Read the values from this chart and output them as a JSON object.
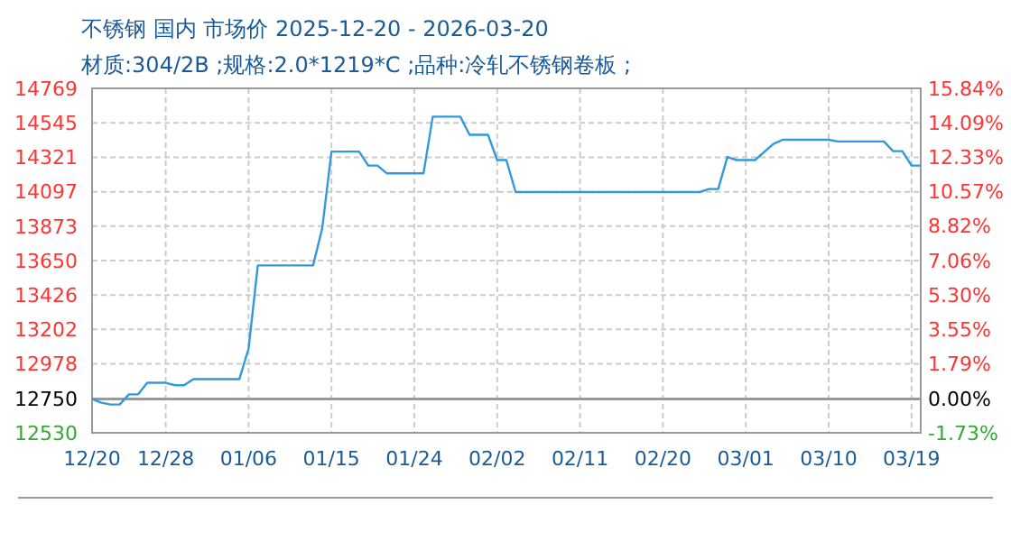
{
  "chart_data": {
    "type": "line",
    "title": "不锈钢 国内 市场价 2025-12-20 - 2026-03-20",
    "subtitle": "材质:304/2B ;规格:2.0*1219*C ;品种:冷轧不锈钢卷板 ;",
    "x": [
      "2025-12-20",
      "2025-12-21",
      "2025-12-22",
      "2025-12-23",
      "2025-12-24",
      "2025-12-25",
      "2025-12-26",
      "2025-12-28",
      "2025-12-29",
      "2025-12-30",
      "2025-12-31",
      "2026-01-05",
      "2026-01-06",
      "2026-01-07",
      "2026-01-13",
      "2026-01-14",
      "2026-01-15",
      "2026-01-18",
      "2026-01-19",
      "2026-01-20",
      "2026-01-21",
      "2026-01-25",
      "2026-01-26",
      "2026-01-29",
      "2026-01-30",
      "2026-02-01",
      "2026-02-02",
      "2026-02-03",
      "2026-02-04",
      "2026-02-24",
      "2026-02-25",
      "2026-02-26",
      "2026-02-27",
      "2026-02-28",
      "2026-03-02",
      "2026-03-04",
      "2026-03-05",
      "2026-03-10",
      "2026-03-11",
      "2026-03-16",
      "2026-03-17",
      "2026-03-18",
      "2026-03-19",
      "2026-03-20"
    ],
    "series": [
      {
        "color": "#3399dd",
        "values": [
          12750,
          12726,
          12714,
          12714,
          12780,
          12780,
          12855,
          12855,
          12839,
          12839,
          12879,
          12879,
          13078,
          13618,
          13618,
          13860,
          14358,
          14358,
          14267,
          14267,
          14217,
          14217,
          14585,
          14585,
          14467,
          14467,
          14303,
          14303,
          14095,
          14095,
          14115,
          14115,
          14323,
          14303,
          14303,
          14408,
          14435,
          14435,
          14424,
          14424,
          14361,
          14361,
          14267,
          14267
        ]
      }
    ],
    "xlim": [
      "2025-12-20",
      "2026-03-20"
    ],
    "xticks": [
      {
        "value": "2025-12-20",
        "label": "12/20"
      },
      {
        "value": "2025-12-28",
        "label": "12/28"
      },
      {
        "value": "2026-01-06",
        "label": "01/06"
      },
      {
        "value": "2026-01-15",
        "label": "01/15"
      },
      {
        "value": "2026-01-24",
        "label": "01/24"
      },
      {
        "value": "2026-02-02",
        "label": "02/02"
      },
      {
        "value": "2026-02-11",
        "label": "02/11"
      },
      {
        "value": "2026-02-20",
        "label": "02/20"
      },
      {
        "value": "2026-03-01",
        "label": "03/01"
      },
      {
        "value": "2026-03-10",
        "label": "03/10"
      },
      {
        "value": "2026-03-19",
        "label": "03/19"
      }
    ],
    "ylim": [
      12530,
      14769
    ],
    "yticks": [
      12530,
      12750,
      12978,
      13202,
      13426,
      13650,
      13873,
      14097,
      14321,
      14545,
      14769
    ],
    "y2lim": [
      -1.73,
      15.84
    ],
    "y2ticks": [
      {
        "value": -1.73,
        "label": "-1.73%"
      },
      {
        "value": 0,
        "label": "0.00%"
      },
      {
        "value": 1.79,
        "label": "1.79%"
      },
      {
        "value": 3.55,
        "label": "3.55%"
      },
      {
        "value": 5.3,
        "label": "5.30%"
      },
      {
        "value": 7.06,
        "label": "7.06%"
      },
      {
        "value": 8.82,
        "label": "8.82%"
      },
      {
        "value": 10.57,
        "label": "10.57%"
      },
      {
        "value": 12.33,
        "label": "12.33%"
      },
      {
        "value": 14.09,
        "label": "14.09%"
      },
      {
        "value": 15.84,
        "label": "15.84%"
      }
    ],
    "ref_lines": [
      {
        "axis": "y",
        "value": 12750,
        "color": "#999999"
      }
    ],
    "grid": true,
    "line_style": "solid",
    "marker": "none"
  }
}
